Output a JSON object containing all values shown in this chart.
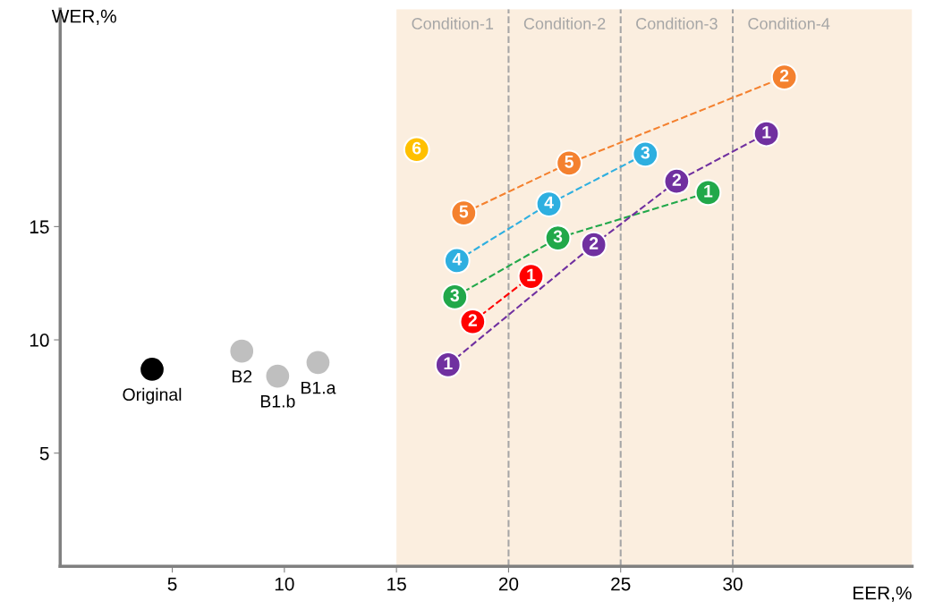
{
  "chart_data": {
    "type": "line",
    "xlabel": "EER,%",
    "ylabel": "WER,%",
    "xlim": [
      0,
      38
    ],
    "ylim": [
      0,
      24.6
    ],
    "xticks": [
      5,
      10,
      15,
      20,
      25,
      30
    ],
    "yticks": [
      5,
      10,
      15
    ],
    "marker": "circle",
    "line_style": "dashed",
    "grid": false,
    "legend": false,
    "bands": [
      {
        "axis": "x",
        "from": 15,
        "to": 20,
        "label": "Condition-1",
        "color": "#fbeedf"
      },
      {
        "axis": "x",
        "from": 20,
        "to": 25,
        "label": "Condition-2",
        "color": "#fbeedf"
      },
      {
        "axis": "x",
        "from": 25,
        "to": 30,
        "label": "Condition-3",
        "color": "#fbeedf"
      },
      {
        "axis": "x",
        "from": 30,
        "to": 38,
        "label": "Condition-4",
        "color": "#fbeedf"
      }
    ],
    "ref_lines": [
      {
        "axis": "x",
        "value": 20,
        "color": "#a6a6a6",
        "line_style": "dashed"
      },
      {
        "axis": "x",
        "value": 25,
        "color": "#a6a6a6",
        "line_style": "dashed"
      },
      {
        "axis": "x",
        "value": 30,
        "color": "#a6a6a6",
        "line_style": "dashed"
      }
    ],
    "series": [
      {
        "type": "scatter",
        "color": "#000000",
        "x": [
          4.1
        ],
        "values": [
          8.7
        ]
      },
      {
        "type": "scatter",
        "color": "#bfbfbf",
        "x": [
          8.1,
          9.7,
          11.5
        ],
        "values": [
          9.5,
          8.4,
          9.0
        ]
      },
      {
        "color": "#ffc000",
        "x": [
          15.9
        ],
        "values": [
          18.4
        ]
      },
      {
        "color": "#f4812f",
        "x": [
          18.0,
          22.7,
          32.3
        ],
        "values": [
          15.6,
          17.8,
          21.6
        ]
      },
      {
        "color": "#2eafe0",
        "x": [
          17.7,
          21.8,
          26.1
        ],
        "values": [
          13.5,
          16.0,
          18.2
        ]
      },
      {
        "color": "#21a84a",
        "x": [
          17.6,
          22.2,
          28.9
        ],
        "values": [
          11.9,
          14.5,
          16.5
        ]
      },
      {
        "color": "#ff0000",
        "x": [
          18.4,
          21.0
        ],
        "values": [
          10.8,
          12.8
        ]
      },
      {
        "color": "#7030a0",
        "x": [
          17.3,
          23.8,
          27.5,
          31.5
        ],
        "values": [
          8.9,
          14.2,
          17.0,
          19.1
        ]
      }
    ],
    "annotations": [
      {
        "text": "Original",
        "x": 4.1,
        "y": 8.7
      },
      {
        "text": "B2",
        "x": 8.1,
        "y": 9.5
      },
      {
        "text": "B1.b",
        "x": 9.7,
        "y": 8.4
      },
      {
        "text": "B1.a",
        "x": 11.5,
        "y": 9.0
      },
      {
        "text": "6",
        "x": 15.9,
        "y": 18.4
      },
      {
        "text": "5",
        "x": 18.0,
        "y": 15.6
      },
      {
        "text": "5",
        "x": 22.7,
        "y": 17.8
      },
      {
        "text": "2",
        "x": 32.3,
        "y": 21.6
      },
      {
        "text": "4",
        "x": 17.7,
        "y": 13.5
      },
      {
        "text": "4",
        "x": 21.8,
        "y": 16.0
      },
      {
        "text": "3",
        "x": 26.1,
        "y": 18.2
      },
      {
        "text": "3",
        "x": 17.6,
        "y": 11.9
      },
      {
        "text": "3",
        "x": 22.2,
        "y": 14.5
      },
      {
        "text": "1",
        "x": 28.9,
        "y": 16.5
      },
      {
        "text": "2",
        "x": 18.4,
        "y": 10.8
      },
      {
        "text": "1",
        "x": 21.0,
        "y": 12.8
      },
      {
        "text": "1",
        "x": 17.3,
        "y": 8.9
      },
      {
        "text": "2",
        "x": 23.8,
        "y": 14.2
      },
      {
        "text": "2",
        "x": 27.5,
        "y": 17.0
      },
      {
        "text": "1",
        "x": 31.5,
        "y": 19.1
      }
    ]
  }
}
